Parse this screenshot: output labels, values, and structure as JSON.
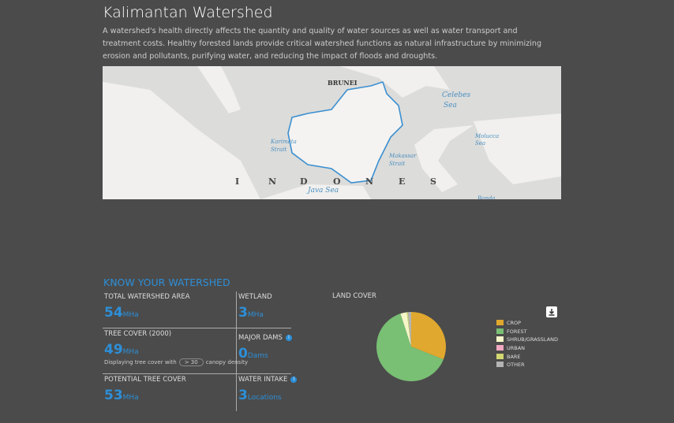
{
  "header": {
    "title": "Kalimantan Watershed",
    "description": "A watershed's health directly affects the quantity and quality of water sources as well as water transport and treatment costs. Healthy forested lands provide critical watershed functions as natural infrastructure by minimizing erosion and pollutants, purifying water, and reducing the impact of floods and droughts."
  },
  "map": {
    "labels": [
      "BRUNEI",
      "Celebes",
      "Sea",
      "Karimata",
      "Strait",
      "Makassar",
      "Strait",
      "Molucca",
      "Sea",
      "Java Sea",
      "I",
      "N",
      "D",
      "O",
      "N",
      "E",
      "S",
      "Banda"
    ]
  },
  "stats": {
    "heading": "KNOW YOUR WATERSHED",
    "items": [
      {
        "label": "TOTAL WATERSHED AREA",
        "value": 54,
        "unit": "MHa"
      },
      {
        "label": "TREE COVER (2000)",
        "value": 49,
        "unit": "MHa",
        "note": [
          "Displaying tree cover with",
          "> 30",
          "canopy density"
        ]
      },
      {
        "label": "POTENTIAL TREE COVER",
        "value": 53,
        "unit": "MHa"
      },
      {
        "label": "WETLAND",
        "value": 3,
        "unit": "MHa"
      },
      {
        "label": "MAJOR DAMS",
        "value": 0,
        "unit": "Dams"
      },
      {
        "label": "WATER INTAKE",
        "value": 3,
        "unit": "Locations"
      }
    ]
  },
  "land_cover": {
    "type": "pie",
    "title": "LAND COVER",
    "categories": [
      "CROP",
      "FOREST",
      "SHRUB/GRASSLAND",
      "URBAN",
      "BARE",
      "OTHER"
    ],
    "values": [
      31,
      64,
      3,
      0,
      0.5,
      1.5
    ],
    "colors": [
      "#e0a82e",
      "#79bf74",
      "#f6f6c8",
      "#f1a8c0",
      "#d3d870",
      "#b4b4b4"
    ]
  }
}
